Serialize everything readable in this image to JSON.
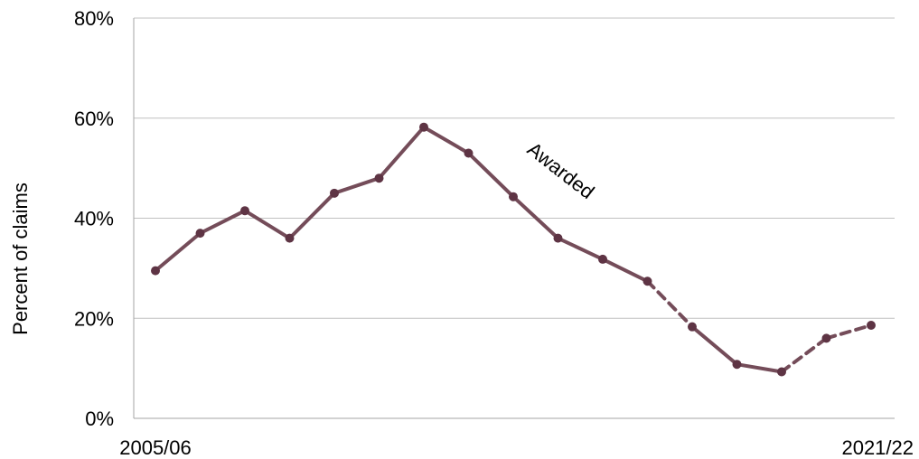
{
  "chart_data": {
    "type": "line",
    "ylabel": "Percent of claims",
    "xlabel": "",
    "x_tick_labels": [
      "2005/06",
      "2021/22"
    ],
    "y_tick_labels": [
      "0%",
      "20%",
      "40%",
      "60%",
      "80%"
    ],
    "ylim": [
      0,
      80
    ],
    "grid": "horizontal",
    "annotation": "Awarded",
    "series": [
      {
        "values": [
          29.5,
          37,
          41.5,
          36,
          45,
          48,
          58.2,
          53,
          44.3,
          36,
          31.8,
          27.4,
          18.3,
          10.8,
          9.3,
          16,
          18.6
        ],
        "dashed_segments": [
          [
            11,
            12
          ],
          [
            14,
            15
          ],
          [
            15,
            16
          ]
        ],
        "color": "#744c59"
      }
    ]
  }
}
